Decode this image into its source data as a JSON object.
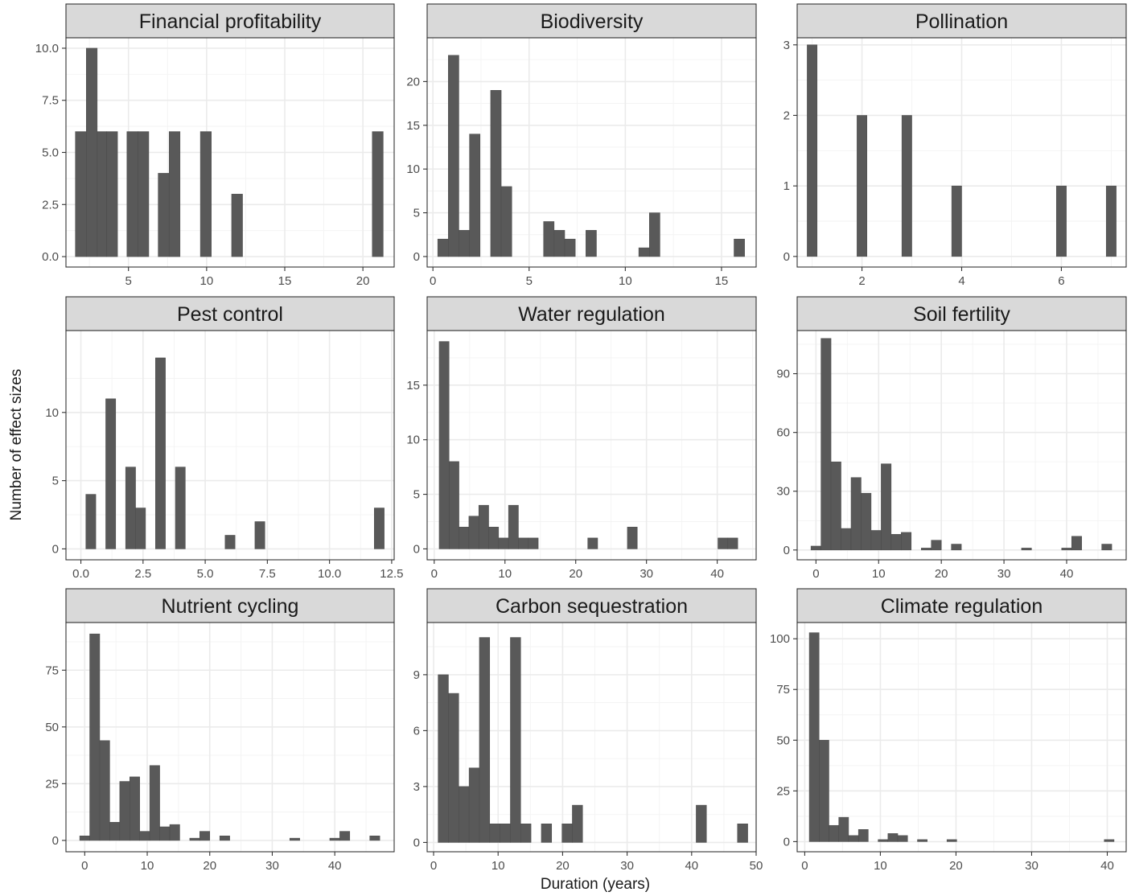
{
  "chart_data": {
    "type": "bar",
    "xlabel": "Duration (years)",
    "ylabel": "Number of effect sizes",
    "panels": [
      {
        "title": "Financial profitability",
        "xlim": [
          1.0,
          22.0
        ],
        "ylim": [
          -0.5,
          10.5
        ],
        "x_ticks": [
          5,
          10,
          15,
          20
        ],
        "x_tick_labels": [
          "5",
          "10",
          "15",
          "20"
        ],
        "y_ticks": [
          0,
          2.5,
          5,
          7.5,
          10
        ],
        "y_tick_labels": [
          "0.0",
          "2.5",
          "5.0",
          "7.5",
          "10.0"
        ],
        "bins": [
          {
            "x0": 1.6,
            "x1": 2.3,
            "y": 6
          },
          {
            "x0": 2.3,
            "x1": 3.0,
            "y": 10
          },
          {
            "x0": 3.0,
            "x1": 3.6,
            "y": 6
          },
          {
            "x0": 3.6,
            "x1": 4.3,
            "y": 6
          },
          {
            "x0": 4.9,
            "x1": 5.6,
            "y": 6
          },
          {
            "x0": 5.6,
            "x1": 6.3,
            "y": 6
          },
          {
            "x0": 6.9,
            "x1": 7.6,
            "y": 4
          },
          {
            "x0": 7.6,
            "x1": 8.3,
            "y": 6
          },
          {
            "x0": 9.6,
            "x1": 10.3,
            "y": 6
          },
          {
            "x0": 11.6,
            "x1": 12.3,
            "y": 3
          },
          {
            "x0": 20.6,
            "x1": 21.3,
            "y": 6
          }
        ]
      },
      {
        "title": "Biodiversity",
        "xlim": [
          -0.3,
          16.8
        ],
        "ylim": [
          -1.2,
          25.0
        ],
        "x_ticks": [
          0,
          5,
          10,
          15
        ],
        "x_tick_labels": [
          "0",
          "5",
          "10",
          "15"
        ],
        "y_ticks": [
          0,
          5,
          10,
          15,
          20
        ],
        "y_tick_labels": [
          "0",
          "5",
          "10",
          "15",
          "20"
        ],
        "bins": [
          {
            "x0": 0.25,
            "x1": 0.8,
            "y": 2
          },
          {
            "x0": 0.8,
            "x1": 1.35,
            "y": 23
          },
          {
            "x0": 1.35,
            "x1": 1.9,
            "y": 3
          },
          {
            "x0": 1.9,
            "x1": 2.45,
            "y": 14
          },
          {
            "x0": 3.0,
            "x1": 3.55,
            "y": 19
          },
          {
            "x0": 3.55,
            "x1": 4.1,
            "y": 8
          },
          {
            "x0": 5.75,
            "x1": 6.3,
            "y": 4
          },
          {
            "x0": 6.3,
            "x1": 6.85,
            "y": 3
          },
          {
            "x0": 6.85,
            "x1": 7.4,
            "y": 2
          },
          {
            "x0": 7.95,
            "x1": 8.5,
            "y": 3
          },
          {
            "x0": 10.7,
            "x1": 11.25,
            "y": 1
          },
          {
            "x0": 11.25,
            "x1": 11.8,
            "y": 5
          },
          {
            "x0": 15.65,
            "x1": 16.2,
            "y": 2
          }
        ]
      },
      {
        "title": "Pollination",
        "xlim": [
          0.7,
          7.3
        ],
        "ylim": [
          -0.15,
          3.1
        ],
        "x_ticks": [
          2,
          4,
          6
        ],
        "x_tick_labels": [
          "2",
          "4",
          "6"
        ],
        "y_ticks": [
          0,
          1,
          2,
          3
        ],
        "y_tick_labels": [
          "0",
          "1",
          "2",
          "3"
        ],
        "bins": [
          {
            "x0": 0.9,
            "x1": 1.1,
            "y": 3
          },
          {
            "x0": 1.9,
            "x1": 2.1,
            "y": 2
          },
          {
            "x0": 2.8,
            "x1": 3.0,
            "y": 2
          },
          {
            "x0": 3.8,
            "x1": 4.0,
            "y": 1
          },
          {
            "x0": 5.9,
            "x1": 6.1,
            "y": 1
          },
          {
            "x0": 6.9,
            "x1": 7.1,
            "y": 1
          }
        ]
      },
      {
        "title": "Pest control",
        "xlim": [
          -0.6,
          12.6
        ],
        "ylim": [
          -0.8,
          16.0
        ],
        "x_ticks": [
          0,
          2.5,
          5,
          7.5,
          10,
          12.5
        ],
        "x_tick_labels": [
          "0.0",
          "2.5",
          "5.0",
          "7.5",
          "10.0",
          "12.5"
        ],
        "y_ticks": [
          0,
          5,
          10
        ],
        "y_tick_labels": [
          "0",
          "5",
          "10"
        ],
        "bins": [
          {
            "x0": 0.2,
            "x1": 0.6,
            "y": 4
          },
          {
            "x0": 1.0,
            "x1": 1.4,
            "y": 11
          },
          {
            "x0": 1.8,
            "x1": 2.2,
            "y": 6
          },
          {
            "x0": 2.2,
            "x1": 2.6,
            "y": 3
          },
          {
            "x0": 3.0,
            "x1": 3.4,
            "y": 14
          },
          {
            "x0": 3.8,
            "x1": 4.2,
            "y": 6
          },
          {
            "x0": 5.8,
            "x1": 6.2,
            "y": 1
          },
          {
            "x0": 7.0,
            "x1": 7.4,
            "y": 2
          },
          {
            "x0": 11.8,
            "x1": 12.2,
            "y": 3
          }
        ]
      },
      {
        "title": "Water regulation",
        "xlim": [
          -1.0,
          45.5
        ],
        "ylim": [
          -1.0,
          20.0
        ],
        "x_ticks": [
          0,
          10,
          20,
          30,
          40
        ],
        "x_tick_labels": [
          "0",
          "10",
          "20",
          "30",
          "40"
        ],
        "y_ticks": [
          0,
          5,
          10,
          15
        ],
        "y_tick_labels": [
          "0",
          "5",
          "10",
          "15"
        ],
        "bins": [
          {
            "x0": 0.7,
            "x1": 2.1,
            "y": 19
          },
          {
            "x0": 2.1,
            "x1": 3.5,
            "y": 8
          },
          {
            "x0": 3.5,
            "x1": 4.9,
            "y": 2
          },
          {
            "x0": 4.9,
            "x1": 6.3,
            "y": 3
          },
          {
            "x0": 6.3,
            "x1": 7.7,
            "y": 4
          },
          {
            "x0": 7.7,
            "x1": 9.1,
            "y": 2
          },
          {
            "x0": 9.1,
            "x1": 10.5,
            "y": 1
          },
          {
            "x0": 10.5,
            "x1": 11.9,
            "y": 4
          },
          {
            "x0": 11.9,
            "x1": 13.3,
            "y": 1
          },
          {
            "x0": 13.3,
            "x1": 14.7,
            "y": 1
          },
          {
            "x0": 21.7,
            "x1": 23.1,
            "y": 1
          },
          {
            "x0": 27.3,
            "x1": 28.7,
            "y": 2
          },
          {
            "x0": 40.1,
            "x1": 41.5,
            "y": 1
          },
          {
            "x0": 41.5,
            "x1": 42.9,
            "y": 1
          }
        ]
      },
      {
        "title": "Soil fertility",
        "xlim": [
          -3.0,
          49.5
        ],
        "ylim": [
          -5.0,
          112.0
        ],
        "x_ticks": [
          0,
          10,
          20,
          30,
          40
        ],
        "x_tick_labels": [
          "0",
          "10",
          "20",
          "30",
          "40"
        ],
        "y_ticks": [
          0,
          30,
          60,
          90
        ],
        "y_tick_labels": [
          "0",
          "30",
          "60",
          "90"
        ],
        "bins": [
          {
            "x0": -0.8,
            "x1": 0.8,
            "y": 2
          },
          {
            "x0": 0.8,
            "x1": 2.4,
            "y": 108
          },
          {
            "x0": 2.4,
            "x1": 4.0,
            "y": 45
          },
          {
            "x0": 4.0,
            "x1": 5.6,
            "y": 11
          },
          {
            "x0": 5.6,
            "x1": 7.2,
            "y": 37
          },
          {
            "x0": 7.2,
            "x1": 8.8,
            "y": 29
          },
          {
            "x0": 8.8,
            "x1": 10.4,
            "y": 10
          },
          {
            "x0": 10.4,
            "x1": 12.0,
            "y": 44
          },
          {
            "x0": 12.0,
            "x1": 13.6,
            "y": 8
          },
          {
            "x0": 13.6,
            "x1": 15.2,
            "y": 9
          },
          {
            "x0": 16.8,
            "x1": 18.4,
            "y": 1
          },
          {
            "x0": 18.4,
            "x1": 20.0,
            "y": 5
          },
          {
            "x0": 21.6,
            "x1": 23.2,
            "y": 3
          },
          {
            "x0": 32.8,
            "x1": 34.4,
            "y": 1
          },
          {
            "x0": 39.2,
            "x1": 40.8,
            "y": 1
          },
          {
            "x0": 40.8,
            "x1": 42.4,
            "y": 7
          },
          {
            "x0": 45.6,
            "x1": 47.2,
            "y": 3
          }
        ]
      },
      {
        "title": "Nutrient cycling",
        "xlim": [
          -3.0,
          49.5
        ],
        "ylim": [
          -5.0,
          96.0
        ],
        "x_ticks": [
          0,
          10,
          20,
          30,
          40
        ],
        "x_tick_labels": [
          "0",
          "10",
          "20",
          "30",
          "40"
        ],
        "y_ticks": [
          0,
          25,
          50,
          75
        ],
        "y_tick_labels": [
          "0",
          "25",
          "50",
          "75"
        ],
        "bins": [
          {
            "x0": -0.8,
            "x1": 0.8,
            "y": 2
          },
          {
            "x0": 0.8,
            "x1": 2.4,
            "y": 91
          },
          {
            "x0": 2.4,
            "x1": 4.0,
            "y": 44
          },
          {
            "x0": 4.0,
            "x1": 5.6,
            "y": 8
          },
          {
            "x0": 5.6,
            "x1": 7.2,
            "y": 26
          },
          {
            "x0": 7.2,
            "x1": 8.8,
            "y": 28
          },
          {
            "x0": 8.8,
            "x1": 10.4,
            "y": 4
          },
          {
            "x0": 10.4,
            "x1": 12.0,
            "y": 33
          },
          {
            "x0": 12.0,
            "x1": 13.6,
            "y": 6
          },
          {
            "x0": 13.6,
            "x1": 15.2,
            "y": 7
          },
          {
            "x0": 16.8,
            "x1": 18.4,
            "y": 1
          },
          {
            "x0": 18.4,
            "x1": 20.0,
            "y": 4
          },
          {
            "x0": 21.6,
            "x1": 23.2,
            "y": 2
          },
          {
            "x0": 32.8,
            "x1": 34.4,
            "y": 1
          },
          {
            "x0": 39.2,
            "x1": 40.8,
            "y": 1
          },
          {
            "x0": 40.8,
            "x1": 42.4,
            "y": 4
          },
          {
            "x0": 45.6,
            "x1": 47.2,
            "y": 2
          }
        ]
      },
      {
        "title": "Carbon sequestration",
        "xlim": [
          -1.0,
          50.0
        ],
        "ylim": [
          -0.5,
          11.8
        ],
        "x_ticks": [
          0,
          10,
          20,
          30,
          40,
          50
        ],
        "x_tick_labels": [
          "0",
          "10",
          "20",
          "30",
          "40",
          "50"
        ],
        "y_ticks": [
          0,
          3,
          6,
          9
        ],
        "y_tick_labels": [
          "0",
          "3",
          "6",
          "9"
        ],
        "bins": [
          {
            "x0": 0.7,
            "x1": 2.3,
            "y": 9
          },
          {
            "x0": 2.3,
            "x1": 3.9,
            "y": 8
          },
          {
            "x0": 3.9,
            "x1": 5.5,
            "y": 3
          },
          {
            "x0": 5.5,
            "x1": 7.1,
            "y": 4
          },
          {
            "x0": 7.1,
            "x1": 8.7,
            "y": 11
          },
          {
            "x0": 8.7,
            "x1": 10.3,
            "y": 1
          },
          {
            "x0": 10.3,
            "x1": 11.9,
            "y": 1
          },
          {
            "x0": 11.9,
            "x1": 13.5,
            "y": 11
          },
          {
            "x0": 13.5,
            "x1": 15.1,
            "y": 1
          },
          {
            "x0": 16.7,
            "x1": 18.3,
            "y": 1
          },
          {
            "x0": 19.9,
            "x1": 21.5,
            "y": 1
          },
          {
            "x0": 21.5,
            "x1": 23.1,
            "y": 2
          },
          {
            "x0": 40.7,
            "x1": 42.3,
            "y": 2
          },
          {
            "x0": 47.1,
            "x1": 48.7,
            "y": 1
          }
        ]
      },
      {
        "title": "Climate regulation",
        "xlim": [
          -1.0,
          42.5
        ],
        "ylim": [
          -5.0,
          108.0
        ],
        "x_ticks": [
          0,
          10,
          20,
          30,
          40
        ],
        "x_tick_labels": [
          "0",
          "10",
          "20",
          "30",
          "40"
        ],
        "y_ticks": [
          0,
          25,
          50,
          75,
          100
        ],
        "y_tick_labels": [
          "0",
          "25",
          "50",
          "75",
          "100"
        ],
        "bins": [
          {
            "x0": 0.6,
            "x1": 1.9,
            "y": 103
          },
          {
            "x0": 1.9,
            "x1": 3.2,
            "y": 50
          },
          {
            "x0": 3.2,
            "x1": 4.5,
            "y": 8
          },
          {
            "x0": 4.5,
            "x1": 5.8,
            "y": 12
          },
          {
            "x0": 5.8,
            "x1": 7.1,
            "y": 3
          },
          {
            "x0": 7.1,
            "x1": 8.4,
            "y": 6
          },
          {
            "x0": 9.7,
            "x1": 11.0,
            "y": 1
          },
          {
            "x0": 11.0,
            "x1": 12.3,
            "y": 4
          },
          {
            "x0": 12.3,
            "x1": 13.6,
            "y": 3
          },
          {
            "x0": 14.9,
            "x1": 16.2,
            "y": 1
          },
          {
            "x0": 18.8,
            "x1": 20.1,
            "y": 1
          },
          {
            "x0": 39.6,
            "x1": 40.9,
            "y": 1
          }
        ]
      }
    ]
  }
}
